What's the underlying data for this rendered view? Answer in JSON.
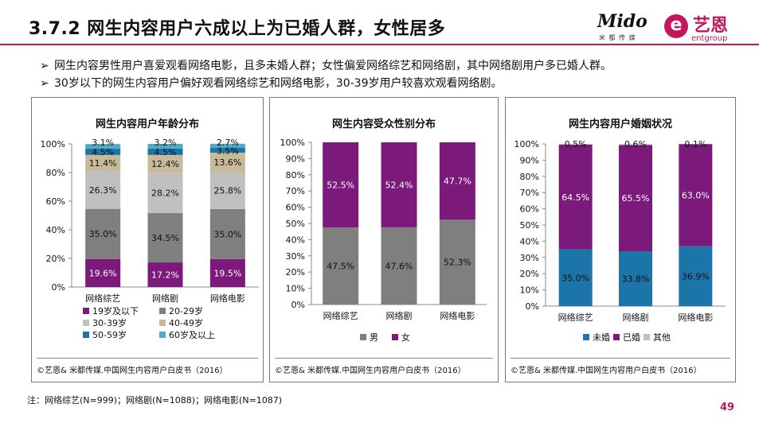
{
  "title": "3.7.2 网生内容用户六成以上为已婚人群，女性居多",
  "logo": {
    "mido": "Mido",
    "mido_sub": "米 都 传 媒",
    "e": "e",
    "yien": "艺恩",
    "ent": "entgroup"
  },
  "bullets": [
    {
      "mark": "➢",
      "text": "网生内容男性用户喜爱观看网络电影，且多未婚人群；女性偏爱网络综艺和网络剧，其中网络剧用户多已婚人群。"
    },
    {
      "mark": "➢",
      "text": "30岁以下的网生内容用户偏好观看网络综艺和网络电影，30-39岁用户较喜欢观看网络剧。"
    }
  ],
  "footnote": "注：网络综艺(N=999)；网络剧(N=1088)；网络电影(N=1087)",
  "page_number": "49",
  "colors": {
    "accent": "#c2185b",
    "purple": "#7b1a7b",
    "gray_dark": "#7f7f7f",
    "gray_light": "#c0c0c0",
    "tan": "#c7b99a",
    "blue": "#1b75a9",
    "cyan": "#4bacc6"
  },
  "chart_data": [
    {
      "type": "bar",
      "stacked": true,
      "title": "网生内容用户年龄分布",
      "categories": [
        "网络综艺",
        "网络剧",
        "网络电影"
      ],
      "ylim": [
        0,
        100
      ],
      "yticks": [
        "0%",
        "20%",
        "40%",
        "60%",
        "80%",
        "100%"
      ],
      "series": [
        {
          "name": "19岁及以下",
          "values": [
            19.6,
            17.2,
            19.5
          ],
          "labels": [
            "19.6%",
            "17.2%",
            "19.5%"
          ],
          "color": "#7b1a7b",
          "label_color": "#ffffff"
        },
        {
          "name": "20-29岁",
          "values": [
            35.0,
            34.5,
            35.0
          ],
          "labels": [
            "35.0%",
            "34.5%",
            "35.0%"
          ],
          "color": "#7f7f7f",
          "label_color": "#111111"
        },
        {
          "name": "30-39岁",
          "values": [
            26.3,
            28.2,
            25.8
          ],
          "labels": [
            "26.3%",
            "28.2%",
            "25.8%"
          ],
          "color": "#c0c0c0",
          "label_color": "#111111"
        },
        {
          "name": "40-49岁",
          "values": [
            11.4,
            12.4,
            13.6
          ],
          "labels": [
            "11.4%",
            "12.4%",
            "13.6%"
          ],
          "color": "#c7b99a",
          "label_color": "#111111"
        },
        {
          "name": "50-59岁",
          "values": [
            4.5,
            4.5,
            3.5
          ],
          "labels": [
            "4.5%",
            "4.5%",
            "3.5%"
          ],
          "color": "#1b75a9",
          "label_color": "#111111"
        },
        {
          "name": "60岁及以上",
          "values": [
            3.1,
            3.2,
            2.7
          ],
          "labels": [
            "3.1%",
            "3.2%",
            "2.7%"
          ],
          "color": "#4bacc6",
          "label_color": "#111111"
        }
      ],
      "source": "©艺恩& 米都传媒.中国网生内容用户白皮书（2016）"
    },
    {
      "type": "bar",
      "stacked": true,
      "title": "网生内容受众性别分布",
      "categories": [
        "网络综艺",
        "网络剧",
        "网络电影"
      ],
      "ylim": [
        0,
        100
      ],
      "yticks": [
        "0%",
        "10%",
        "20%",
        "30%",
        "40%",
        "50%",
        "60%",
        "70%",
        "80%",
        "90%",
        "100%"
      ],
      "series": [
        {
          "name": "男",
          "values": [
            47.5,
            47.6,
            52.3
          ],
          "labels": [
            "47.5%",
            "47.6%",
            "52.3%"
          ],
          "color": "#7f7f7f",
          "label_color": "#111111"
        },
        {
          "name": "女",
          "values": [
            52.5,
            52.4,
            47.7
          ],
          "labels": [
            "52.5%",
            "52.4%",
            "47.7%"
          ],
          "color": "#7b1a7b",
          "label_color": "#ffffff"
        }
      ],
      "source": "©艺恩& 米都传媒.中国网生内容用户白皮书（2016）"
    },
    {
      "type": "bar",
      "stacked": true,
      "title": "网生内容用户婚姻状况",
      "categories": [
        "网络综艺",
        "网络剧",
        "网络电影"
      ],
      "ylim": [
        0,
        100
      ],
      "yticks": [
        "0%",
        "10%",
        "20%",
        "30%",
        "40%",
        "50%",
        "60%",
        "70%",
        "80%",
        "90%",
        "100%"
      ],
      "series": [
        {
          "name": "未婚",
          "values": [
            35.0,
            33.8,
            36.9
          ],
          "labels": [
            "35.0%",
            "33.8%",
            "36.9%"
          ],
          "color": "#1b75a9",
          "label_color": "#111111"
        },
        {
          "name": "已婚",
          "values": [
            64.5,
            65.5,
            63.0
          ],
          "labels": [
            "64.5%",
            "65.5%",
            "63.0%"
          ],
          "color": "#7b1a7b",
          "label_color": "#ffffff"
        },
        {
          "name": "其他",
          "values": [
            0.5,
            0.6,
            0.1
          ],
          "labels": [
            "0.5%",
            "0.6%",
            "0.1%"
          ],
          "color": "#c0c0c0",
          "label_color": "#111111"
        }
      ],
      "source": "©艺恩& 米都传媒.中国网生内容用户白皮书（2016）"
    }
  ]
}
